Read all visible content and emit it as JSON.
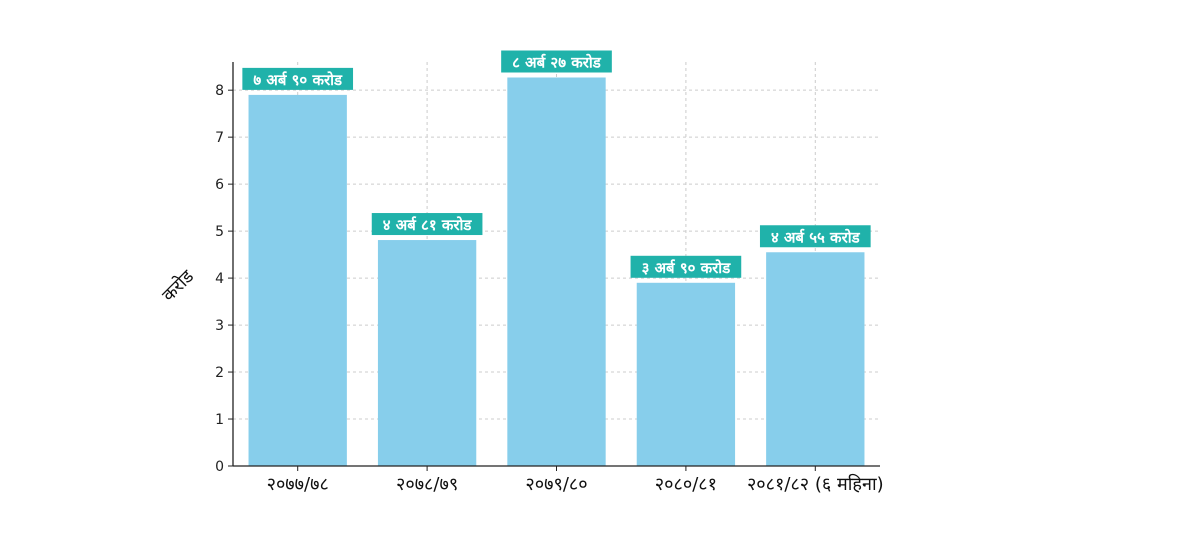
{
  "chart_data": {
    "type": "bar",
    "title": "",
    "xlabel": "",
    "ylabel": "करोड",
    "categories": [
      "२०७७/७८",
      "२०७८/७९",
      "२०७९/८०",
      "२०८०/८१",
      "२०८१/८२ (६ महिना)"
    ],
    "values": [
      7.9,
      4.81,
      8.27,
      3.9,
      4.55
    ],
    "data_labels": [
      "७ अर्ब ९० करोड",
      "४ अर्ब ८१ करोड",
      "८ अर्ब २७ करोड",
      "३ अर्ब ९० करोड",
      "४ अर्ब ५५ करोड"
    ],
    "ylim": [
      0,
      8.6
    ],
    "yticks": [
      "0",
      "1",
      "2",
      "3",
      "4",
      "5",
      "6",
      "7",
      "8"
    ],
    "grid": true,
    "colors": {
      "bar": "#87ceeb",
      "label_bg": "#20b2aa",
      "axis": "#222222",
      "grid": "#cccccc"
    }
  }
}
